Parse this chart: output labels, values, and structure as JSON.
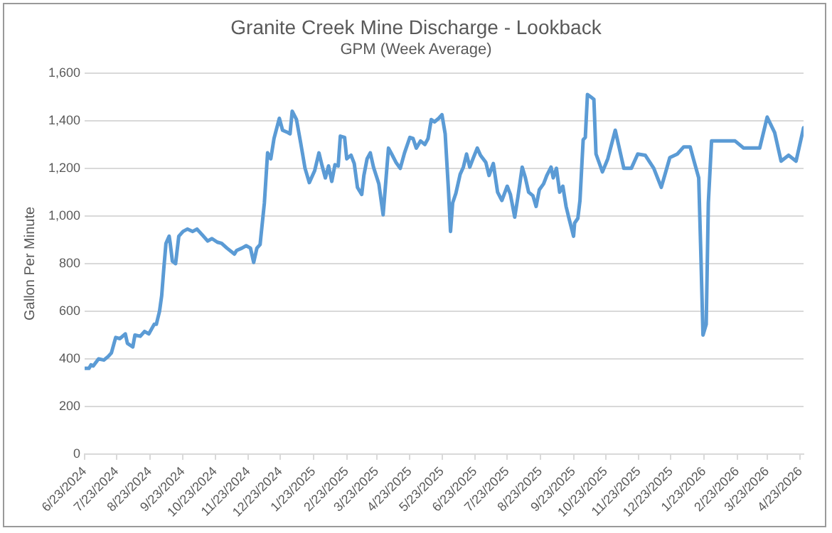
{
  "chart_data": {
    "type": "line",
    "title": "Granite Creek Mine Discharge - Lookback",
    "subtitle": "GPM (Week Average)",
    "ylabel": "Gallon Per Minute",
    "x": [
      "2024-06-23",
      "2024-06-27",
      "2024-06-29",
      "2024-07-01",
      "2024-07-06",
      "2024-07-11",
      "2024-07-15",
      "2024-07-18",
      "2024-07-22",
      "2024-07-26",
      "2024-07-31",
      "2024-08-02",
      "2024-08-07",
      "2024-08-09",
      "2024-08-14",
      "2024-08-18",
      "2024-08-22",
      "2024-08-27",
      "2024-08-29",
      "2024-09-01",
      "2024-09-03",
      "2024-09-05",
      "2024-09-07",
      "2024-09-10",
      "2024-09-11",
      "2024-09-13",
      "2024-09-16",
      "2024-09-19",
      "2024-09-23",
      "2024-09-27",
      "2024-10-02",
      "2024-10-06",
      "2024-10-11",
      "2024-10-16",
      "2024-10-20",
      "2024-10-25",
      "2024-10-29",
      "2024-11-03",
      "2024-11-10",
      "2024-11-12",
      "2024-11-17",
      "2024-11-21",
      "2024-11-25",
      "2024-11-28",
      "2024-12-01",
      "2024-12-04",
      "2024-12-08",
      "2024-12-11",
      "2024-12-14",
      "2024-12-17",
      "2024-12-22",
      "2024-12-25",
      "2024-12-30",
      "2025-01-01",
      "2025-01-03",
      "2025-01-07",
      "2025-01-11",
      "2025-01-15",
      "2025-01-19",
      "2025-01-24",
      "2025-01-28",
      "2025-01-31",
      "2025-02-03",
      "2025-02-06",
      "2025-02-09",
      "2025-02-12",
      "2025-02-15",
      "2025-02-17",
      "2025-02-21",
      "2025-02-23",
      "2025-02-27",
      "2025-03-02",
      "2025-03-05",
      "2025-03-09",
      "2025-03-11",
      "2025-03-14",
      "2025-03-17",
      "2025-03-20",
      "2025-03-25",
      "2025-03-29",
      "2025-04-03",
      "2025-04-06",
      "2025-04-10",
      "2025-04-14",
      "2025-04-18",
      "2025-04-23",
      "2025-04-26",
      "2025-04-29",
      "2025-05-03",
      "2025-05-07",
      "2025-05-10",
      "2025-05-13",
      "2025-05-16",
      "2025-05-20",
      "2025-05-23",
      "2025-05-26",
      "2025-05-29",
      "2025-05-31",
      "2025-06-02",
      "2025-06-05",
      "2025-06-09",
      "2025-06-12",
      "2025-06-15",
      "2025-06-18",
      "2025-06-21",
      "2025-06-25",
      "2025-06-28",
      "2025-07-03",
      "2025-07-06",
      "2025-07-10",
      "2025-07-14",
      "2025-07-18",
      "2025-07-23",
      "2025-07-26",
      "2025-07-30",
      "2025-08-02",
      "2025-08-06",
      "2025-08-09",
      "2025-08-12",
      "2025-08-16",
      "2025-08-19",
      "2025-08-22",
      "2025-08-26",
      "2025-08-29",
      "2025-09-02",
      "2025-09-04",
      "2025-09-07",
      "2025-09-10",
      "2025-09-13",
      "2025-09-16",
      "2025-09-19",
      "2025-09-23",
      "2025-09-24",
      "2025-09-27",
      "2025-09-29",
      "2025-10-02",
      "2025-10-04",
      "2025-10-06",
      "2025-10-09",
      "2025-10-12",
      "2025-10-14",
      "2025-10-20",
      "2025-10-25",
      "2025-11-01",
      "2025-11-09",
      "2025-11-16",
      "2025-11-22",
      "2025-11-29",
      "2025-12-07",
      "2025-12-14",
      "2025-12-22",
      "2025-12-29",
      "2026-01-04",
      "2026-01-10",
      "2026-01-13",
      "2026-01-18",
      "2026-01-20",
      "2026-01-22",
      "2026-01-25",
      "2026-01-27",
      "2026-01-30",
      "2026-02-07",
      "2026-02-21",
      "2026-03-01",
      "2026-03-16",
      "2026-03-23",
      "2026-03-30",
      "2026-04-05",
      "2026-04-12",
      "2026-04-19",
      "2026-04-26"
    ],
    "series": [
      {
        "color": "#5b9bd5",
        "values": [
          360,
          360,
          375,
          370,
          400,
          395,
          410,
          425,
          490,
          485,
          505,
          465,
          450,
          500,
          495,
          515,
          505,
          545,
          545,
          600,
          665,
          780,
          885,
          915,
          885,
          810,
          800,
          915,
          935,
          945,
          935,
          945,
          920,
          895,
          905,
          890,
          885,
          865,
          840,
          855,
          865,
          875,
          865,
          805,
          865,
          880,
          1055,
          1265,
          1240,
          1325,
          1410,
          1360,
          1350,
          1345,
          1440,
          1405,
          1305,
          1200,
          1140,
          1190,
          1265,
          1210,
          1160,
          1210,
          1145,
          1215,
          1210,
          1335,
          1330,
          1240,
          1255,
          1220,
          1120,
          1090,
          1170,
          1240,
          1265,
          1205,
          1135,
          1005,
          1285,
          1260,
          1225,
          1200,
          1265,
          1330,
          1325,
          1285,
          1315,
          1300,
          1325,
          1405,
          1395,
          1410,
          1425,
          1345,
          1115,
          935,
          1055,
          1095,
          1175,
          1205,
          1260,
          1205,
          1240,
          1285,
          1255,
          1225,
          1170,
          1220,
          1100,
          1065,
          1125,
          1090,
          995,
          1080,
          1205,
          1160,
          1100,
          1085,
          1040,
          1110,
          1135,
          1170,
          1205,
          1160,
          1200,
          1100,
          1125,
          1040,
          985,
          915,
          970,
          990,
          1065,
          1320,
          1330,
          1510,
          1500,
          1490,
          1260,
          1185,
          1240,
          1360,
          1200,
          1200,
          1260,
          1255,
          1200,
          1120,
          1245,
          1260,
          1290,
          1290,
          1240,
          1160,
          840,
          500,
          545,
          1055,
          1315,
          1315,
          1315,
          1285,
          1285,
          1415,
          1350,
          1230,
          1255,
          1230,
          1370
        ]
      }
    ],
    "xlim": [
      "2024-06-23",
      "2026-04-26"
    ],
    "xticks": [
      {
        "value": "2024-06-23",
        "label": "6/23/2024"
      },
      {
        "value": "2024-07-23",
        "label": "7/23/2024"
      },
      {
        "value": "2024-08-23",
        "label": "8/23/2024"
      },
      {
        "value": "2024-09-23",
        "label": "9/23/2024"
      },
      {
        "value": "2024-10-23",
        "label": "10/23/2024"
      },
      {
        "value": "2024-11-23",
        "label": "11/23/2024"
      },
      {
        "value": "2024-12-23",
        "label": "12/23/2024"
      },
      {
        "value": "2025-01-23",
        "label": "1/23/2025"
      },
      {
        "value": "2025-02-23",
        "label": "2/23/2025"
      },
      {
        "value": "2025-03-23",
        "label": "3/23/2025"
      },
      {
        "value": "2025-04-23",
        "label": "4/23/2025"
      },
      {
        "value": "2025-05-23",
        "label": "5/23/2025"
      },
      {
        "value": "2025-06-23",
        "label": "6/23/2025"
      },
      {
        "value": "2025-07-23",
        "label": "7/23/2025"
      },
      {
        "value": "2025-08-23",
        "label": "8/23/2025"
      },
      {
        "value": "2025-09-23",
        "label": "9/23/2025"
      },
      {
        "value": "2025-10-23",
        "label": "10/23/2025"
      },
      {
        "value": "2025-11-23",
        "label": "11/23/2025"
      },
      {
        "value": "2025-12-23",
        "label": "12/23/2025"
      },
      {
        "value": "2026-01-23",
        "label": "1/23/2026"
      },
      {
        "value": "2026-02-23",
        "label": "2/23/2026"
      },
      {
        "value": "2026-03-23",
        "label": "3/23/2026"
      },
      {
        "value": "2026-04-23",
        "label": "4/23/2026"
      }
    ],
    "ylim": [
      0,
      1600
    ],
    "yticks": [
      0,
      200,
      400,
      600,
      800,
      {
        "value": 1000,
        "label": "1,000"
      },
      {
        "value": 1200,
        "label": "1,200"
      },
      {
        "value": 1400,
        "label": "1,400"
      },
      {
        "value": 1600,
        "label": "1,600"
      }
    ],
    "grid": "y",
    "legend": false,
    "marker": "none",
    "line_style": "solid"
  }
}
